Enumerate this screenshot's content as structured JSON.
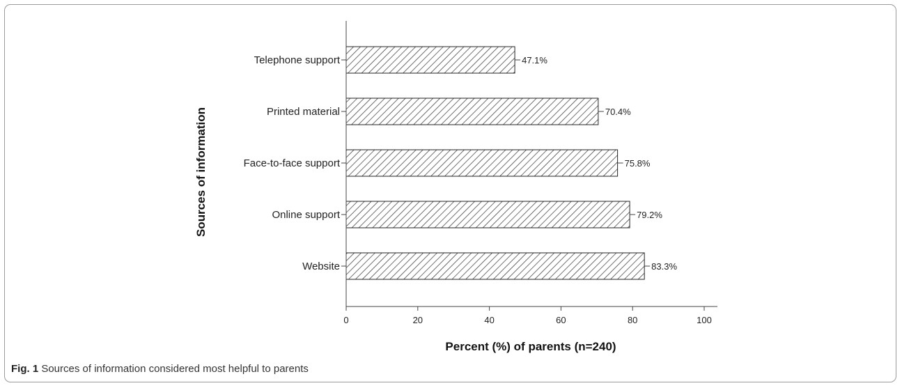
{
  "chart_data": {
    "type": "bar",
    "orientation": "horizontal",
    "categories": [
      "Telephone support",
      "Printed material",
      "Face-to-face support",
      "Online support",
      "Website"
    ],
    "values": [
      47.1,
      70.4,
      75.8,
      79.2,
      83.3
    ],
    "data_labels": [
      "47.1%",
      "70.4%",
      "75.8%",
      "79.2%",
      "83.3%"
    ],
    "xlabel": "Percent (%) of parents (n=240)",
    "ylabel": "Sources of information",
    "xlim": [
      0,
      100
    ],
    "xticks": [
      0,
      20,
      40,
      60,
      80,
      100
    ],
    "grid": false,
    "bar_fill": "diagonal-hatch",
    "colors": {
      "bar_stroke": "#222222",
      "hatch": "#333333",
      "axis": "#444444"
    }
  },
  "caption": {
    "label": "Fig. 1",
    "text": " Sources of information considered most helpful to parents"
  }
}
